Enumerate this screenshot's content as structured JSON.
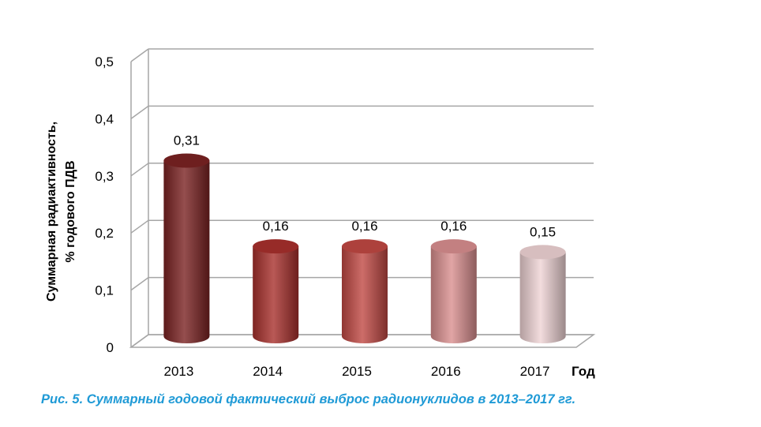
{
  "chart_data": {
    "type": "bar",
    "categories": [
      "2013",
      "2014",
      "2015",
      "2016",
      "2017"
    ],
    "values": [
      0.31,
      0.16,
      0.16,
      0.16,
      0.15
    ],
    "data_labels": [
      "0,31",
      "0,16",
      "0,16",
      "0,16",
      "0,15"
    ],
    "bar_colors": [
      "#7a2222",
      "#a8302c",
      "#c04843",
      "#d98e8f",
      "#efd3d4"
    ],
    "ylabel_line1": "Суммарная  радиактивность,",
    "ylabel_line2": "% годового ПДВ",
    "xlabel": "Год",
    "ylim": [
      0,
      0.5
    ],
    "yticks": [
      0,
      0.1,
      0.2,
      0.3,
      0.4,
      0.5
    ],
    "ytick_labels": [
      "0",
      "0,1",
      "0,2",
      "0,3",
      "0,4",
      "0,5"
    ],
    "grid": true,
    "style": "3d-cylinder"
  },
  "caption": "Рис. 5. Суммарный годовой фактический выброс радионуклидов в 2013–2017 гг."
}
